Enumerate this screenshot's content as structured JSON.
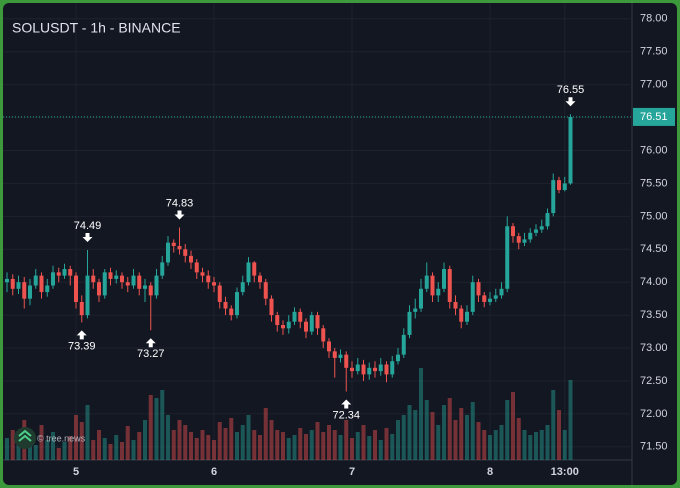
{
  "chart_data": {
    "type": "candlestick",
    "title": "SOLUSDT - 1h - BINANCE",
    "watermark": "© tree.news",
    "categories": [
      null,
      null,
      null,
      null,
      null,
      null,
      null,
      null,
      null,
      null,
      null,
      null,
      "5",
      null,
      null,
      null,
      null,
      null,
      null,
      null,
      null,
      null,
      null,
      null,
      null,
      null,
      null,
      null,
      null,
      null,
      null,
      null,
      null,
      null,
      null,
      null,
      "6",
      null,
      null,
      null,
      null,
      null,
      null,
      null,
      null,
      null,
      null,
      null,
      null,
      null,
      null,
      null,
      null,
      null,
      null,
      null,
      null,
      null,
      null,
      null,
      "7",
      null,
      null,
      null,
      null,
      null,
      null,
      null,
      null,
      null,
      null,
      null,
      null,
      null,
      null,
      null,
      null,
      null,
      null,
      null,
      null,
      null,
      null,
      null,
      "8",
      null,
      null,
      null,
      null,
      null,
      null,
      null,
      null,
      null,
      null,
      null,
      null,
      "13:00",
      null
    ],
    "open": [
      74.0,
      74.05,
      73.9,
      74.0,
      73.75,
      73.95,
      74.1,
      73.85,
      73.95,
      74.15,
      74.1,
      74.2,
      74.1,
      73.7,
      73.5,
      74.1,
      74.0,
      73.8,
      74.15,
      74.05,
      74.1,
      74.0,
      73.95,
      74.1,
      73.9,
      73.95,
      73.8,
      74.1,
      74.3,
      74.6,
      74.55,
      74.5,
      74.4,
      74.3,
      74.15,
      74.1,
      74.0,
      73.95,
      73.7,
      73.6,
      73.5,
      73.85,
      74.0,
      74.3,
      74.1,
      74.0,
      73.75,
      73.5,
      73.35,
      73.3,
      73.4,
      73.55,
      73.4,
      73.25,
      73.5,
      73.3,
      73.1,
      72.95,
      72.85,
      72.9,
      72.7,
      72.65,
      72.75,
      72.6,
      72.7,
      72.65,
      72.75,
      72.6,
      72.8,
      72.9,
      73.2,
      73.55,
      73.6,
      73.9,
      74.1,
      73.8,
      73.9,
      74.2,
      73.7,
      73.6,
      73.4,
      73.55,
      74.0,
      73.8,
      73.7,
      73.75,
      73.8,
      73.9,
      74.85,
      74.7,
      74.6,
      74.65,
      74.75,
      74.8,
      74.85,
      75.05,
      75.55,
      75.4,
      75.5
    ],
    "high": [
      74.15,
      74.12,
      74.1,
      74.08,
      74.05,
      74.2,
      74.15,
      74.05,
      74.25,
      74.22,
      74.28,
      74.25,
      74.15,
      73.8,
      74.49,
      74.2,
      74.05,
      74.2,
      74.22,
      74.18,
      74.15,
      74.08,
      74.2,
      74.15,
      74.05,
      74.0,
      74.2,
      74.4,
      74.7,
      74.65,
      74.83,
      74.58,
      74.48,
      74.35,
      74.22,
      74.18,
      74.08,
      74.0,
      73.78,
      73.65,
      73.92,
      74.1,
      74.38,
      74.32,
      74.15,
      74.05,
      73.8,
      73.55,
      73.42,
      73.5,
      73.62,
      73.6,
      73.45,
      73.55,
      73.55,
      73.35,
      73.15,
      73.0,
      72.98,
      72.95,
      72.8,
      72.85,
      72.82,
      72.78,
      72.8,
      72.85,
      72.8,
      72.88,
      73.0,
      73.3,
      73.65,
      73.75,
      74.05,
      74.3,
      74.15,
      74.0,
      74.3,
      74.25,
      73.8,
      73.65,
      73.65,
      74.1,
      74.05,
      73.85,
      73.85,
      73.9,
      74.0,
      75.0,
      74.9,
      74.75,
      74.75,
      74.82,
      74.88,
      74.95,
      75.12,
      75.65,
      75.6,
      75.6,
      76.55
    ],
    "low": [
      73.85,
      73.8,
      73.82,
      73.6,
      73.65,
      73.9,
      73.75,
      73.78,
      73.9,
      74.0,
      74.05,
      73.95,
      73.6,
      73.39,
      73.45,
      73.9,
      73.7,
      73.75,
      73.95,
      73.98,
      73.9,
      73.85,
      73.9,
      73.8,
      73.7,
      73.27,
      73.75,
      74.05,
      74.25,
      74.45,
      74.42,
      74.3,
      74.2,
      74.05,
      74.0,
      73.9,
      73.85,
      73.6,
      73.5,
      73.42,
      73.45,
      73.8,
      73.95,
      74.0,
      73.9,
      73.65,
      73.4,
      73.25,
      73.2,
      73.22,
      73.35,
      73.3,
      73.15,
      73.2,
      73.2,
      73.0,
      72.85,
      72.55,
      72.78,
      72.34,
      72.55,
      72.6,
      72.5,
      72.52,
      72.55,
      72.58,
      72.48,
      72.55,
      72.75,
      72.85,
      73.15,
      73.45,
      73.55,
      73.85,
      73.7,
      73.7,
      73.85,
      73.6,
      73.5,
      73.3,
      73.35,
      73.5,
      73.7,
      73.62,
      73.65,
      73.7,
      73.75,
      73.85,
      74.6,
      74.5,
      74.55,
      74.6,
      74.7,
      74.75,
      74.8,
      75.0,
      75.35,
      75.38,
      75.48
    ],
    "close": [
      74.05,
      73.9,
      74.0,
      73.75,
      73.95,
      74.1,
      73.85,
      73.95,
      74.15,
      74.1,
      74.2,
      74.1,
      73.7,
      73.5,
      74.1,
      74.0,
      73.8,
      74.15,
      74.05,
      74.1,
      74.0,
      73.95,
      74.1,
      73.9,
      73.95,
      73.8,
      74.1,
      74.3,
      74.6,
      74.55,
      74.5,
      74.4,
      74.3,
      74.15,
      74.1,
      74.0,
      73.95,
      73.7,
      73.6,
      73.5,
      73.85,
      74.0,
      74.3,
      74.1,
      74.0,
      73.75,
      73.5,
      73.35,
      73.3,
      73.4,
      73.55,
      73.4,
      73.25,
      73.5,
      73.3,
      73.1,
      72.95,
      72.85,
      72.9,
      72.7,
      72.65,
      72.75,
      72.6,
      72.7,
      72.65,
      72.75,
      72.6,
      72.8,
      72.9,
      73.2,
      73.55,
      73.6,
      73.9,
      74.1,
      73.8,
      73.9,
      74.2,
      73.7,
      73.6,
      73.4,
      73.55,
      74.0,
      73.8,
      73.7,
      73.75,
      73.8,
      73.9,
      74.85,
      74.7,
      74.6,
      74.65,
      74.75,
      74.8,
      74.85,
      75.05,
      75.55,
      75.4,
      75.5,
      76.51
    ],
    "volume": [
      22,
      30,
      18,
      40,
      25,
      15,
      35,
      20,
      28,
      12,
      18,
      24,
      45,
      38,
      55,
      20,
      30,
      22,
      16,
      25,
      18,
      34,
      20,
      28,
      40,
      65,
      62,
      70,
      45,
      30,
      40,
      35,
      28,
      22,
      30,
      25,
      20,
      38,
      32,
      42,
      28,
      35,
      45,
      30,
      25,
      52,
      40,
      30,
      28,
      22,
      25,
      32,
      26,
      30,
      38,
      28,
      35,
      30,
      25,
      40,
      22,
      28,
      35,
      24,
      30,
      20,
      32,
      26,
      40,
      45,
      55,
      50,
      92,
      60,
      48,
      35,
      55,
      62,
      40,
      52,
      45,
      58,
      38,
      30,
      25,
      30,
      35,
      60,
      68,
      42,
      30,
      25,
      28,
      30,
      35,
      70,
      50,
      30,
      80
    ],
    "up_color": "#26a69a",
    "down_color": "#ef5350",
    "high_markers": [
      14,
      30,
      98
    ],
    "low_markers": [
      13,
      25,
      59
    ],
    "ylim": [
      71.3,
      78.24
    ],
    "yticks": [
      {
        "value": 71.5,
        "label": "71.50"
      },
      {
        "value": 72,
        "label": "72.00"
      },
      {
        "value": 72.5,
        "label": "72.50"
      },
      {
        "value": 73,
        "label": "73.00"
      },
      {
        "value": 73.5,
        "label": "73.50"
      },
      {
        "value": 74,
        "label": "74.00"
      },
      {
        "value": 74.5,
        "label": "74.50"
      },
      {
        "value": 75,
        "label": "75.00"
      },
      {
        "value": 75.5,
        "label": "75.50"
      },
      {
        "value": 76,
        "label": "76.00"
      },
      {
        "value": 76.5,
        "label": "76.50"
      },
      {
        "value": 77,
        "label": "77.00"
      },
      {
        "value": 77.5,
        "label": "77.50"
      },
      {
        "value": 78,
        "label": "78.00"
      }
    ],
    "grid": true
  }
}
